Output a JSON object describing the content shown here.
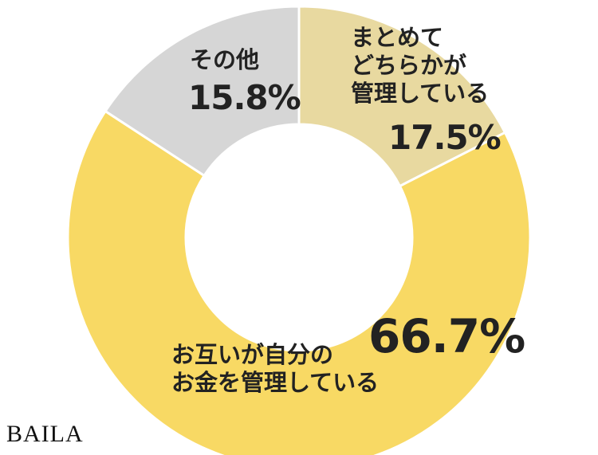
{
  "chart_data": {
    "type": "donut",
    "categories": [
      "まとめて\nどちらかが\n管理している",
      "お互いが自分の\nお金を管理している",
      "その他"
    ],
    "values": [
      17.5,
      66.7,
      15.8
    ],
    "value_labels": [
      "17.5%",
      "66.7%",
      "15.8%"
    ],
    "colors": [
      "#e8d9a0",
      "#f8d964",
      "#d6d6d6"
    ],
    "watermark": "BAILA"
  }
}
